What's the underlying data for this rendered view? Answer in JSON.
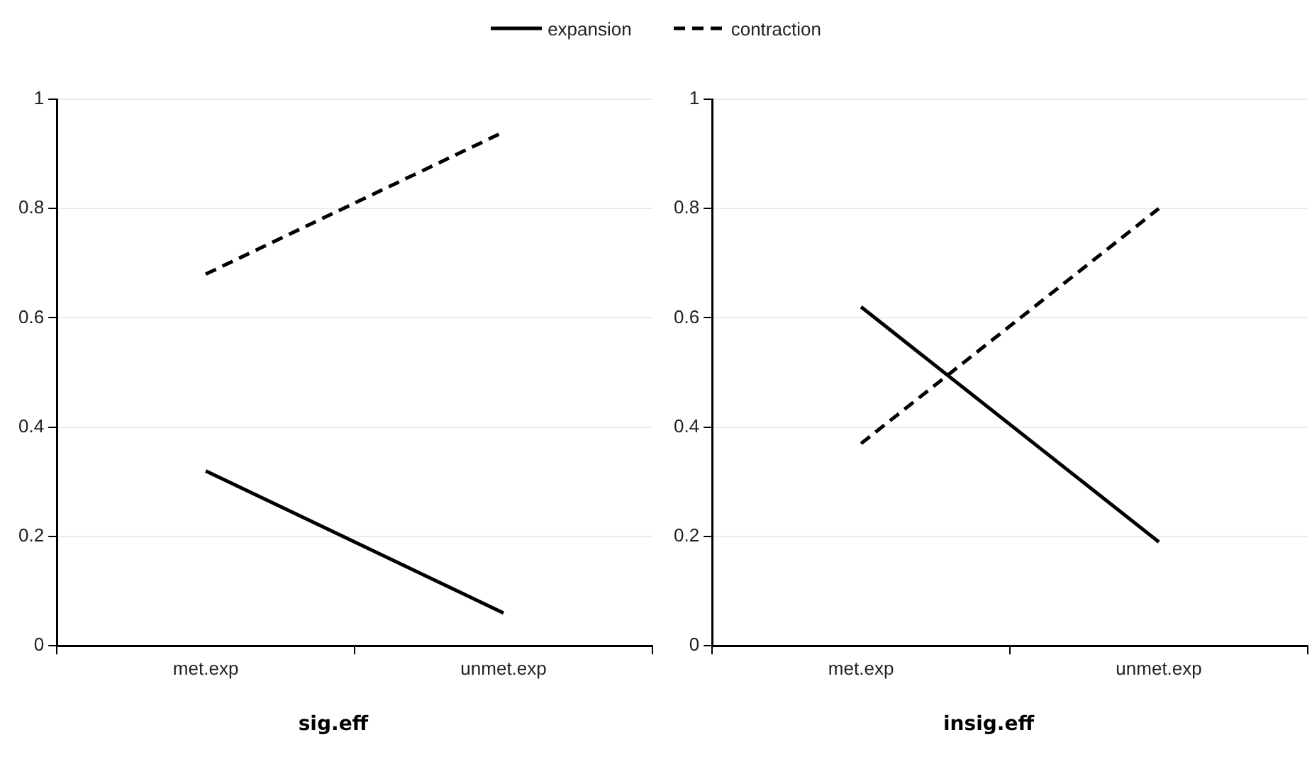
{
  "chart_data": [
    {
      "type": "line",
      "title": "sig.eff",
      "categories": [
        "met.exp",
        "unmet.exp"
      ],
      "ylim": [
        0,
        1
      ],
      "yticks": [
        0,
        0.2,
        0.4,
        0.6,
        0.8,
        1
      ],
      "grid": "y",
      "legend": "top",
      "marker": "none",
      "series": [
        {
          "name": "expansion",
          "color": "#000000",
          "line_style": "solid",
          "values": [
            0.32,
            0.06
          ]
        },
        {
          "name": "contraction",
          "color": "#000000",
          "line_style": "dashed",
          "values": [
            0.68,
            0.94
          ]
        }
      ]
    },
    {
      "type": "line",
      "title": "insig.eff",
      "categories": [
        "met.exp",
        "unmet.exp"
      ],
      "ylim": [
        0,
        1
      ],
      "yticks": [
        0,
        0.2,
        0.4,
        0.6,
        0.8,
        1
      ],
      "grid": "y",
      "marker": "none",
      "series": [
        {
          "color": "#000000",
          "line_style": "solid",
          "values": [
            0.62,
            0.19
          ]
        },
        {
          "color": "#000000",
          "line_style": "dashed",
          "values": [
            0.37,
            0.8
          ]
        }
      ]
    }
  ]
}
